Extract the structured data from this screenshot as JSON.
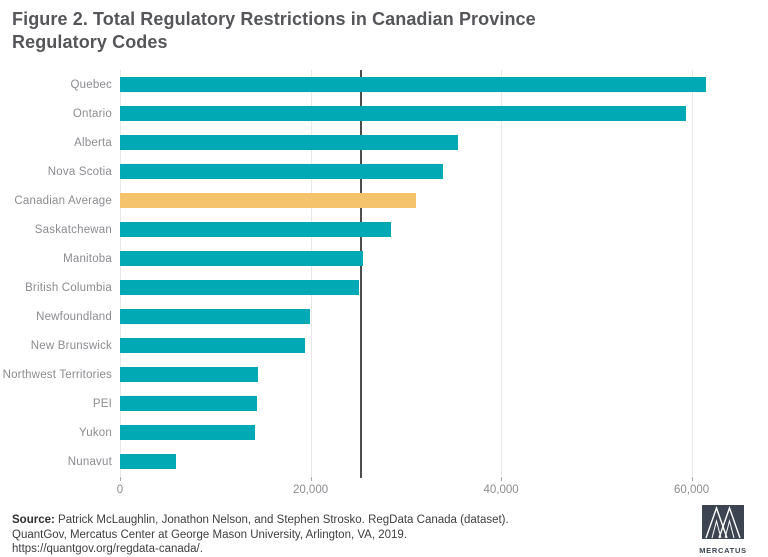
{
  "title": {
    "line1": "Figure 2. Total Regulatory Restrictions in Canadian Province",
    "line2": "Regulatory Codes"
  },
  "chart_data": {
    "type": "bar",
    "orientation": "horizontal",
    "title": "Figure 2. Total Regulatory Restrictions in Canadian Province Regulatory Codes",
    "xlabel": "",
    "ylabel": "",
    "categories": [
      "Quebec",
      "Ontario",
      "Alberta",
      "Nova Scotia",
      "Canadian Average",
      "Saskatchewan",
      "Manitoba",
      "British Columbia",
      "Newfoundland",
      "New Brunswick",
      "Northwest Territories",
      "PEI",
      "Yukon",
      "Nunavut"
    ],
    "values": [
      61500,
      59400,
      35500,
      33900,
      31100,
      28400,
      25500,
      25100,
      19900,
      19400,
      14500,
      14400,
      14200,
      5900
    ],
    "highlight_category": "Canadian Average",
    "bar_color": "#00a9b4",
    "highlight_color": "#f6c36d",
    "reference_line": {
      "value": 25200,
      "color": "#4d4d4d"
    },
    "xlim": [
      0,
      67700
    ],
    "ticks": [
      {
        "label": "0",
        "value": 0
      },
      {
        "label": "20,000",
        "value": 20000
      },
      {
        "label": "40,000",
        "value": 40000
      },
      {
        "label": "60,000",
        "value": 60000
      }
    ],
    "grid": "vertical-gridlines",
    "legend": "none"
  },
  "source": {
    "label": "Source:",
    "line1_rest": " Patrick McLaughlin, Jonathon Nelson, and Stephen Strosko. RegData Canada (dataset).",
    "line2": "QuantGov, Mercatus Center at George Mason University, Arlington, VA, 2019.",
    "line3": "https://quantgov.org/regdata-canada/."
  },
  "logo": {
    "text": "MERCATUS"
  }
}
